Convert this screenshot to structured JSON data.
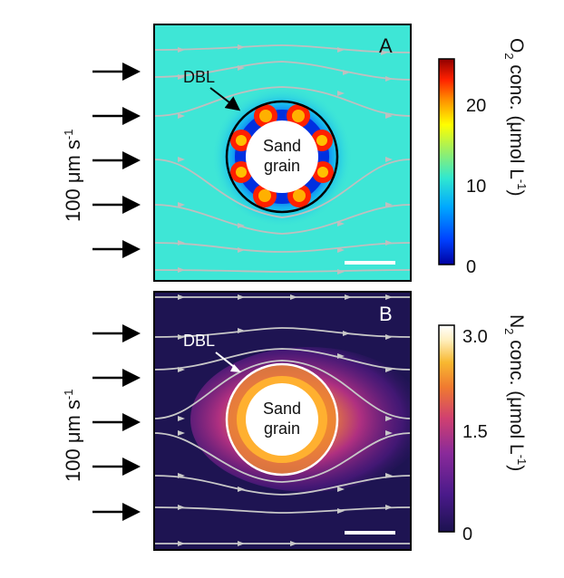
{
  "panel_a": {
    "letter": "A",
    "dbl_label": "DBL",
    "grain_line1": "Sand",
    "grain_line2": "grain",
    "flow_label": "100 μm s-1",
    "flow_value": "100 μm s",
    "flow_exp": "-1",
    "colorbar": {
      "label_main": "O",
      "label_sub": "2",
      "label_rest": " conc. (μmol L",
      "label_exp": "-1",
      "label_close": ")",
      "ticks": [
        "20",
        "10",
        "0"
      ],
      "colors": [
        "#0000a0",
        "#0040ff",
        "#00a8ff",
        "#30e8d0",
        "#a0f060",
        "#ffff00",
        "#ff9000",
        "#ff2000",
        "#900000"
      ],
      "background": "#3ee6d6"
    }
  },
  "panel_b": {
    "letter": "B",
    "dbl_label": "DBL",
    "grain_line1": "Sand",
    "grain_line2": "grain",
    "flow_label": "100 μm s-1",
    "flow_value": "100 μm s",
    "flow_exp": "-1",
    "colorbar": {
      "label_main": "N",
      "label_sub": "2",
      "label_rest": " conc. (μmol L",
      "label_exp": "-1",
      "label_close": ")",
      "ticks": [
        "3.0",
        "1.5",
        "0"
      ],
      "colors": [
        "#1c1250",
        "#4a1a8a",
        "#8a2a9a",
        "#d04070",
        "#f07a30",
        "#f8b830",
        "#fff0c0",
        "#ffffff"
      ],
      "background": "#1e1452"
    }
  }
}
